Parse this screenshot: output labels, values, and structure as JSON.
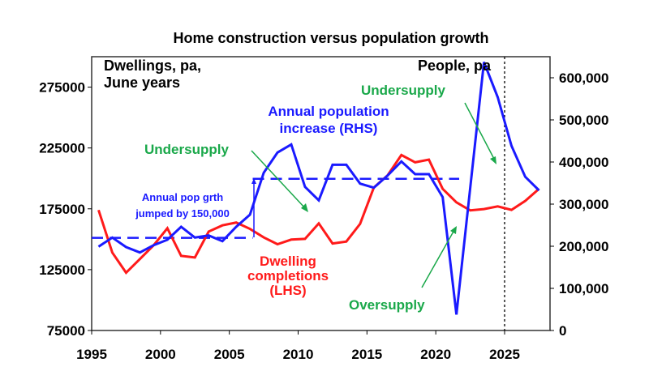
{
  "chart_data": {
    "type": "line",
    "title": "Home construction versus population growth",
    "left_axis_label": [
      "Dwellings, pa,",
      "June years"
    ],
    "right_axis_label": "People, pa",
    "x_ticks": [
      "1995",
      "2000",
      "2005",
      "2010",
      "2015",
      "2020",
      "2025"
    ],
    "xlim": [
      1995,
      2028.3
    ],
    "left_ylim": [
      75000,
      300000
    ],
    "left_ticks": [
      "75000",
      "125000",
      "175000",
      "225000",
      "275000"
    ],
    "left_tick_values": [
      75000,
      125000,
      175000,
      225000,
      275000
    ],
    "right_ylim": [
      0,
      650000
    ],
    "right_ticks": [
      "0",
      "100,000",
      "200,000",
      "300,000",
      "400,000",
      "500,000",
      "600,000"
    ],
    "right_tick_values": [
      0,
      100000,
      200000,
      300000,
      400000,
      500000,
      600000
    ],
    "colors": {
      "dwellings": "#ff1a1a",
      "population": "#1a1aff",
      "annotation": "#1aa84a",
      "axis": "#000000"
    },
    "years": [
      1996,
      1997,
      1998,
      1999,
      2000,
      2001,
      2002,
      2003,
      2004,
      2005,
      2006,
      2007,
      2008,
      2009,
      2010,
      2011,
      2012,
      2013,
      2014,
      2015,
      2016,
      2017,
      2018,
      2019,
      2020,
      2021,
      2022,
      2023,
      2024,
      2025,
      2026,
      2027,
      2028
    ],
    "series": [
      {
        "name": "Dwelling completions (LHS)",
        "label_lines": [
          "Dwelling",
          "completions",
          "(LHS)"
        ],
        "axis": "left",
        "values": [
          174000,
          139000,
          122500,
          133700,
          145000,
          159000,
          136300,
          135000,
          156300,
          161400,
          163700,
          158500,
          151500,
          145900,
          149700,
          150300,
          163000,
          146500,
          148100,
          162600,
          192500,
          202500,
          219200,
          213200,
          215400,
          191400,
          180300,
          173700,
          174800,
          177000,
          174100,
          181500,
          191400
        ]
      },
      {
        "name": "Annual population increase (RHS)",
        "label_lines": [
          "Annual population",
          "increase (RHS)"
        ],
        "axis": "right",
        "values": [
          199000,
          220600,
          198000,
          185200,
          202500,
          215400,
          246200,
          220600,
          225600,
          212100,
          246200,
          275000,
          374400,
          422500,
          441700,
          341000,
          309000,
          393600,
          393600,
          348700,
          339000,
          367900,
          401300,
          371200,
          371200,
          316700,
          37900,
          337800,
          637100,
          553800,
          438500,
          364800,
          332700
        ]
      }
    ],
    "reference_lines": [
      {
        "axis": "right",
        "value": 220000,
        "from": 1995,
        "to": 2006.7
      },
      {
        "axis": "right",
        "value": 360000,
        "from": 2006.7,
        "to": 2021.7
      }
    ],
    "forecast_divider_year": 2025,
    "annotations": {
      "jump": [
        "Annual pop grth",
        "jumped by 150,000"
      ],
      "undersupply_1": "Undersupply",
      "undersupply_2": "Undersupply",
      "oversupply": "Oversupply"
    }
  }
}
